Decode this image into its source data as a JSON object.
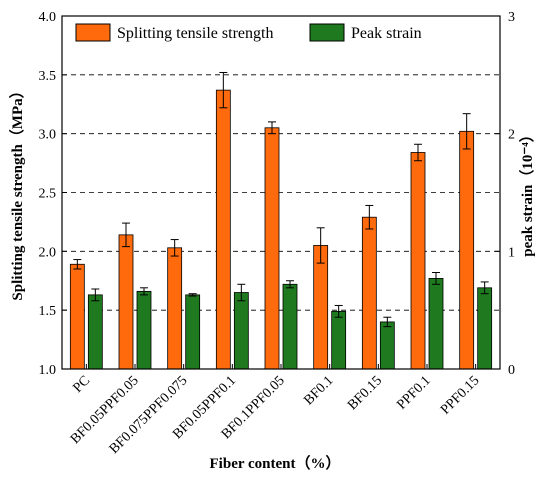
{
  "chart_data": {
    "type": "bar",
    "xlabel": "Fiber content（%）",
    "ylabel_left": "Splitting tensile strength（MPa）",
    "ylabel_right": "peak strain（10⁻⁴）",
    "ylim_left": [
      1.0,
      4.0
    ],
    "yticks_left": [
      "1.0",
      "1.5",
      "2.0",
      "2.5",
      "3.0",
      "3.5",
      "4.0"
    ],
    "ylim_right": [
      0,
      3
    ],
    "yticks_right": [
      "0",
      "1",
      "2",
      "3"
    ],
    "grid": "horizontal dashed",
    "legend_position": "top",
    "categories": [
      "PC",
      "BF0.05PPF0.05",
      "BF0.075PPF0.075",
      "BF0.05PPF0.1",
      "BF0.1PPF0.05",
      "BF0.1",
      "BF0.15",
      "PPF0.1",
      "PPF0.15"
    ],
    "series": [
      {
        "name": "Splitting tensile strength",
        "axis": "left",
        "color": "#ff6a0c",
        "values": [
          1.89,
          2.14,
          2.03,
          3.37,
          3.05,
          2.05,
          2.29,
          2.84,
          3.02
        ],
        "errors": [
          0.04,
          0.1,
          0.07,
          0.15,
          0.05,
          0.15,
          0.1,
          0.07,
          0.15
        ]
      },
      {
        "name": "Peak strain",
        "axis": "right",
        "color": "#1f7a1f",
        "values": [
          0.63,
          0.66,
          0.63,
          0.65,
          0.72,
          0.49,
          0.4,
          0.77,
          0.69
        ],
        "errors": [
          0.05,
          0.03,
          0.01,
          0.07,
          0.03,
          0.05,
          0.04,
          0.05,
          0.05
        ]
      }
    ]
  }
}
